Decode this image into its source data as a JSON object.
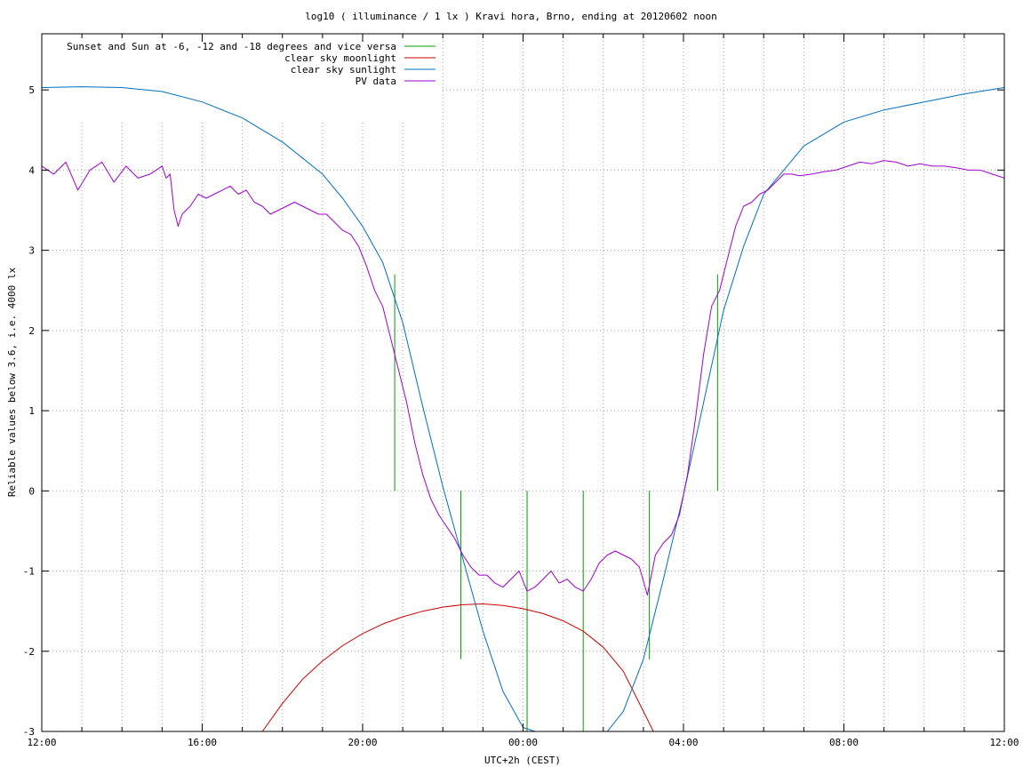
{
  "chart_data": {
    "type": "line",
    "title": "log10 ( illuminance / 1 lx ) Kravi hora, Brno, ending at 20120602 noon",
    "xlabel": "UTC+2h (CEST)",
    "ylabel": "Reliable values below 3.6, i.e. 4000 lx",
    "x_unit": "hours since 12:00",
    "xlim": [
      0,
      24
    ],
    "ylim": [
      -3,
      5.7
    ],
    "x_ticks": [
      {
        "value": 0,
        "label": "12:00"
      },
      {
        "value": 4,
        "label": "16:00"
      },
      {
        "value": 8,
        "label": "20:00"
      },
      {
        "value": 12,
        "label": "00:00"
      },
      {
        "value": 16,
        "label": "04:00"
      },
      {
        "value": 20,
        "label": "08:00"
      },
      {
        "value": 24,
        "label": "12:00"
      }
    ],
    "y_ticks": [
      {
        "value": -3,
        "label": "-3"
      },
      {
        "value": -2,
        "label": "-2"
      },
      {
        "value": -1,
        "label": "-1"
      },
      {
        "value": 0,
        "label": "0"
      },
      {
        "value": 1,
        "label": "1"
      },
      {
        "value": 2,
        "label": "2"
      },
      {
        "value": 3,
        "label": "3"
      },
      {
        "value": 4,
        "label": "4"
      },
      {
        "value": 5,
        "label": "5"
      }
    ],
    "grid": true,
    "legend_position": "top-left",
    "series": [
      {
        "name": "Sunset and Sun at -6, -12 and -18 degrees and vice versa",
        "color": "#00a000",
        "kind": "impulses",
        "x": [
          8.8,
          10.45,
          12.1,
          13.5,
          15.15,
          16.85
        ],
        "y": [
          2.7,
          0,
          0,
          0,
          0,
          2.7
        ],
        "y_base": [
          0,
          -2.1,
          -3,
          -3,
          -2.1,
          0
        ]
      },
      {
        "name": "clear sky moonlight",
        "color": "#cc0000",
        "x": [
          5.5,
          6,
          6.5,
          7,
          7.5,
          8,
          8.5,
          9,
          9.5,
          10,
          10.5,
          11,
          11.5,
          12,
          12.5,
          13,
          13.5,
          14,
          14.5,
          15,
          15.25
        ],
        "y": [
          -3,
          -2.65,
          -2.35,
          -2.12,
          -1.93,
          -1.78,
          -1.66,
          -1.57,
          -1.5,
          -1.45,
          -1.42,
          -1.41,
          -1.43,
          -1.47,
          -1.53,
          -1.62,
          -1.75,
          -1.95,
          -2.25,
          -2.75,
          -3
        ]
      },
      {
        "name": "clear sky sunlight",
        "color": "#0070c0",
        "x": [
          0,
          1,
          2,
          3,
          4,
          5,
          6,
          7,
          7.5,
          8,
          8.5,
          9,
          9.5,
          10,
          10.5,
          11,
          11.5,
          12,
          12.3,
          14.1,
          14.5,
          15,
          15.5,
          16,
          16.5,
          17,
          17.5,
          18,
          19,
          20,
          21,
          22,
          23,
          24
        ],
        "y": [
          5.03,
          5.04,
          5.03,
          4.98,
          4.85,
          4.65,
          4.35,
          3.95,
          3.65,
          3.3,
          2.85,
          2.1,
          1.05,
          0.05,
          -0.85,
          -1.75,
          -2.5,
          -2.95,
          -3,
          -3,
          -2.75,
          -2.1,
          -1.1,
          -0.05,
          1.1,
          2.25,
          3.05,
          3.7,
          4.3,
          4.6,
          4.75,
          4.85,
          4.95,
          5.03
        ]
      },
      {
        "name": "PV data",
        "color": "#a000d0",
        "x": [
          0,
          0.3,
          0.6,
          0.9,
          1.2,
          1.5,
          1.8,
          2.1,
          2.4,
          2.7,
          3.0,
          3.1,
          3.2,
          3.3,
          3.4,
          3.5,
          3.7,
          3.9,
          4.1,
          4.3,
          4.5,
          4.7,
          4.9,
          5.1,
          5.3,
          5.5,
          5.7,
          5.9,
          6.1,
          6.3,
          6.5,
          6.7,
          6.9,
          7.1,
          7.3,
          7.5,
          7.7,
          7.9,
          8.1,
          8.3,
          8.5,
          8.7,
          8.9,
          9.1,
          9.3,
          9.5,
          9.7,
          9.9,
          10.1,
          10.3,
          10.5,
          10.7,
          10.9,
          11.1,
          11.3,
          11.5,
          11.7,
          11.9,
          12.1,
          12.3,
          12.5,
          12.7,
          12.9,
          13.1,
          13.3,
          13.5,
          13.7,
          13.9,
          14.1,
          14.3,
          14.5,
          14.7,
          14.9,
          15.1,
          15.3,
          15.5,
          15.7,
          15.9,
          16.1,
          16.3,
          16.5,
          16.7,
          16.9,
          17.1,
          17.3,
          17.5,
          17.7,
          17.9,
          18.1,
          18.3,
          18.5,
          18.7,
          18.9,
          19.2,
          19.5,
          19.8,
          20.1,
          20.4,
          20.7,
          21.0,
          21.3,
          21.6,
          21.9,
          22.2,
          22.5,
          22.8,
          23.1,
          23.4,
          23.7,
          24.0
        ],
        "y": [
          4.05,
          3.95,
          4.1,
          3.75,
          4.0,
          4.1,
          3.85,
          4.05,
          3.9,
          3.95,
          4.05,
          3.9,
          3.95,
          3.5,
          3.3,
          3.45,
          3.55,
          3.7,
          3.65,
          3.7,
          3.75,
          3.8,
          3.7,
          3.75,
          3.6,
          3.55,
          3.45,
          3.5,
          3.55,
          3.6,
          3.55,
          3.5,
          3.45,
          3.45,
          3.35,
          3.25,
          3.2,
          3.05,
          2.8,
          2.5,
          2.3,
          1.9,
          1.5,
          1.1,
          0.6,
          0.2,
          -0.1,
          -0.3,
          -0.45,
          -0.6,
          -0.8,
          -0.95,
          -1.05,
          -1.05,
          -1.15,
          -1.2,
          -1.1,
          -1.0,
          -1.25,
          -1.2,
          -1.1,
          -1.0,
          -1.15,
          -1.1,
          -1.2,
          -1.25,
          -1.1,
          -0.9,
          -0.8,
          -0.75,
          -0.8,
          -0.85,
          -0.95,
          -1.3,
          -0.8,
          -0.65,
          -0.55,
          -0.3,
          0.2,
          0.9,
          1.7,
          2.3,
          2.5,
          2.9,
          3.3,
          3.55,
          3.6,
          3.7,
          3.75,
          3.85,
          3.95,
          3.95,
          3.93,
          3.95,
          3.98,
          4.0,
          4.05,
          4.1,
          4.08,
          4.12,
          4.1,
          4.05,
          4.08,
          4.05,
          4.05,
          4.03,
          4.0,
          4.0,
          3.95,
          3.9
        ]
      }
    ]
  }
}
